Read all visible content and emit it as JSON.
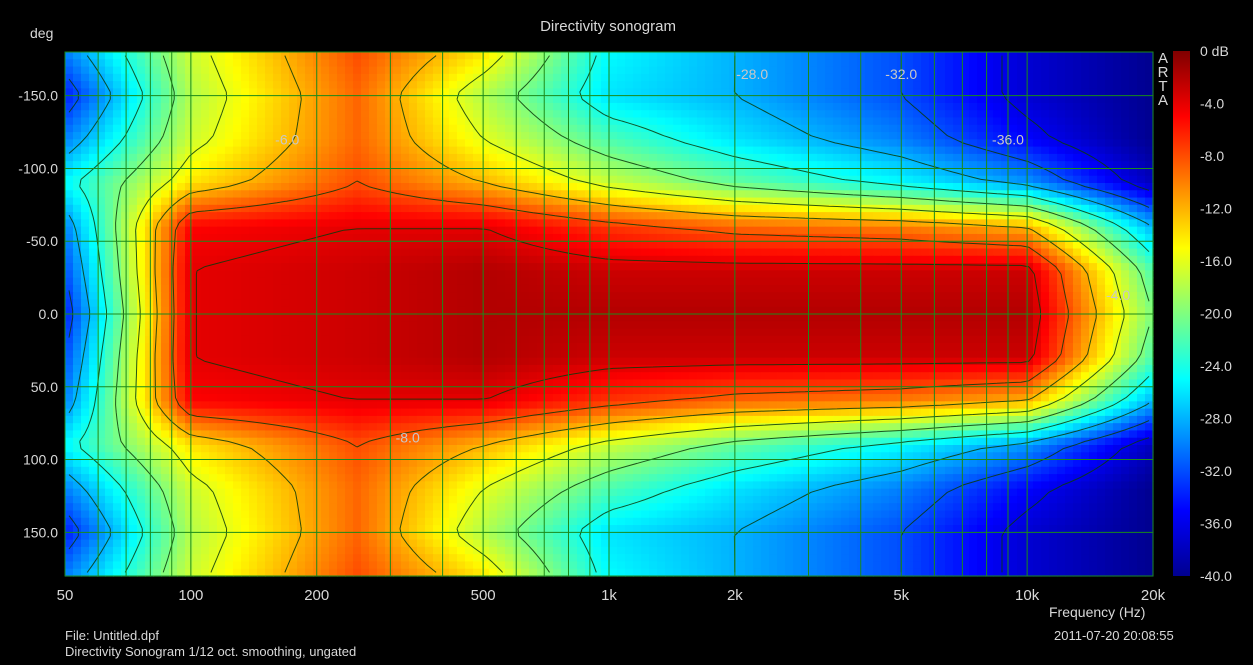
{
  "chart_data": {
    "type": "heatmap",
    "title": "Directivity sonogram",
    "xlabel": "Frequency (Hz)",
    "ylabel": "deg",
    "x_scale": "log",
    "xlim": [
      50,
      20000
    ],
    "ylim": [
      -180,
      180
    ],
    "x_ticks": [
      {
        "value": 50,
        "label": "50"
      },
      {
        "value": 100,
        "label": "100"
      },
      {
        "value": 200,
        "label": "200"
      },
      {
        "value": 500,
        "label": "500"
      },
      {
        "value": 1000,
        "label": "1k"
      },
      {
        "value": 2000,
        "label": "2k"
      },
      {
        "value": 5000,
        "label": "5k"
      },
      {
        "value": 10000,
        "label": "10k"
      },
      {
        "value": 20000,
        "label": "20k"
      }
    ],
    "y_ticks": [
      {
        "value": -150,
        "label": "-150.0"
      },
      {
        "value": -100,
        "label": "-100.0"
      },
      {
        "value": -50,
        "label": "-50.0"
      },
      {
        "value": 0,
        "label": "0.0"
      },
      {
        "value": 50,
        "label": "50.0"
      },
      {
        "value": 100,
        "label": "100.0"
      },
      {
        "value": 150,
        "label": "150.0"
      }
    ],
    "grid": true,
    "colorbar": {
      "min": -40,
      "max": 0,
      "unit": "dB",
      "ticks": [
        {
          "value": 0,
          "label": "0 dB"
        },
        {
          "value": -4,
          "label": "-4.0"
        },
        {
          "value": -8,
          "label": "-8.0"
        },
        {
          "value": -12,
          "label": "-12.0"
        },
        {
          "value": -16,
          "label": "-16.0"
        },
        {
          "value": -20,
          "label": "-20.0"
        },
        {
          "value": -24,
          "label": "-24.0"
        },
        {
          "value": -28,
          "label": "-28.0"
        },
        {
          "value": -32,
          "label": "-32.0"
        },
        {
          "value": -36,
          "label": "-36.0"
        },
        {
          "value": -40,
          "label": "-40.0"
        }
      ]
    },
    "contour_interval_db": 4,
    "contour_labels": [
      {
        "freq": 170,
        "angle": -120,
        "label": "-6.0"
      },
      {
        "freq": 330,
        "angle": 85,
        "label": "-8.0"
      },
      {
        "freq": 2200,
        "angle": -165,
        "label": "-28.0"
      },
      {
        "freq": 5000,
        "angle": -165,
        "label": "-32.0"
      },
      {
        "freq": 9000,
        "angle": -120,
        "label": "-36.0"
      },
      {
        "freq": 16500,
        "angle": -13,
        "label": "-4.0"
      }
    ],
    "level_db_by_angle": {
      "angles": [
        -180,
        -150,
        -120,
        -90,
        -60,
        -30,
        0,
        30,
        60,
        90,
        120,
        150,
        180
      ],
      "series": [
        {
          "freq": 50,
          "values": [
            -30,
            -34,
            -30,
            -25,
            -30,
            -32,
            -34,
            -32,
            -30,
            -25,
            -30,
            -34,
            -30
          ]
        },
        {
          "freq": 100,
          "values": [
            -17,
            -18,
            -17,
            -14,
            -5,
            -4,
            -4,
            -4,
            -5,
            -14,
            -17,
            -18,
            -17
          ]
        },
        {
          "freq": 250,
          "values": [
            -8,
            -9,
            -9,
            -8,
            -4,
            -3,
            -3,
            -3,
            -4,
            -8,
            -9,
            -9,
            -8
          ]
        },
        {
          "freq": 500,
          "values": [
            -14,
            -18,
            -16,
            -12,
            -4,
            -2,
            -2,
            -2,
            -4,
            -12,
            -16,
            -18,
            -14
          ]
        },
        {
          "freq": 1000,
          "values": [
            -25,
            -26,
            -22,
            -17,
            -7,
            -3,
            -2,
            -3,
            -7,
            -17,
            -22,
            -26,
            -25
          ]
        },
        {
          "freq": 2000,
          "values": [
            -28,
            -28,
            -26,
            -21,
            -9,
            -3,
            -2,
            -3,
            -9,
            -21,
            -26,
            -28,
            -28
          ]
        },
        {
          "freq": 5000,
          "values": [
            -32,
            -32,
            -30,
            -25,
            -10,
            -3,
            -2,
            -3,
            -10,
            -25,
            -30,
            -32,
            -32
          ]
        },
        {
          "freq": 10000,
          "values": [
            -37,
            -37,
            -35,
            -29,
            -12,
            -3,
            -2,
            -3,
            -12,
            -29,
            -35,
            -37,
            -37
          ]
        },
        {
          "freq": 20000,
          "values": [
            -40,
            -40,
            -40,
            -38,
            -28,
            -22,
            -20,
            -22,
            -28,
            -38,
            -40,
            -40,
            -40
          ]
        }
      ]
    }
  },
  "footer": {
    "file": "File: Untitled.dpf",
    "description": "Directivity Sonogram 1/12 oct. smoothing, ungated",
    "datetime": "2011-07-20  20:08:55"
  },
  "brand": "ARTA",
  "colors": {
    "background": "#000000",
    "text": "#d8d8d8",
    "grid": "#1a8a1a",
    "contour": "#0b3a0b",
    "contour_label": "#c8c8c8"
  }
}
